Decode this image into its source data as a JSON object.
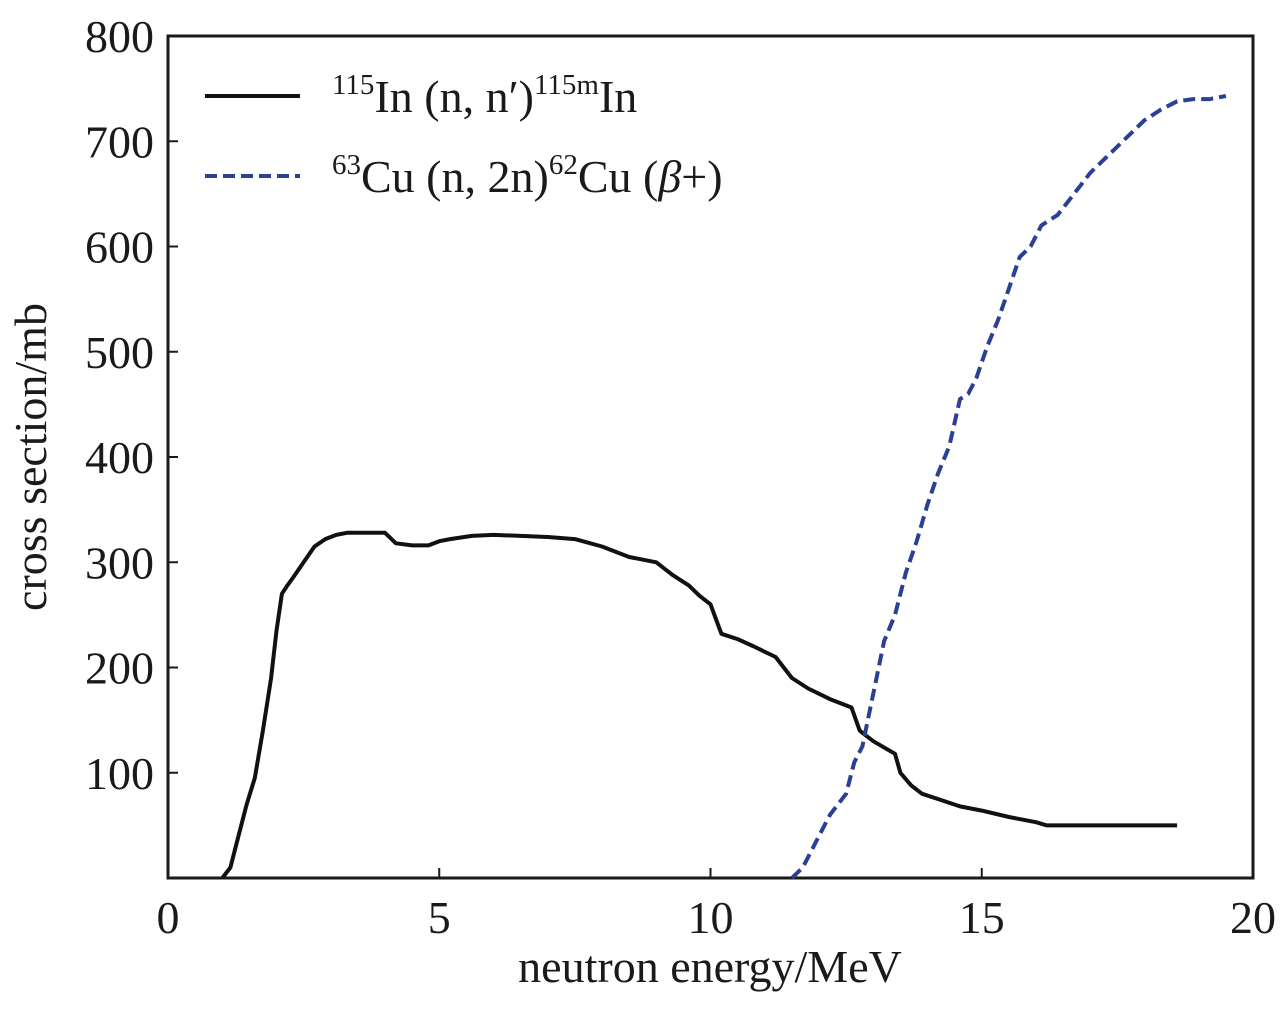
{
  "chart_data": {
    "type": "line",
    "title": "",
    "xlabel": "neutron energy/MeV",
    "ylabel": "cross section/mb",
    "xlim": [
      0,
      20
    ],
    "ylim": [
      0,
      800
    ],
    "x_ticks": [
      0,
      5,
      10,
      15,
      20
    ],
    "x_tick_labels": [
      "0",
      "5",
      "10",
      "15",
      "20"
    ],
    "y_ticks": [
      100,
      200,
      300,
      400,
      500,
      600,
      700,
      800
    ],
    "y_tick_labels": [
      "100",
      "200",
      "300",
      "400",
      "500",
      "600",
      "700",
      "800"
    ],
    "grid": false,
    "legend_position": "top-left",
    "series": [
      {
        "name": "115In (n, n′)115mIn",
        "legend": {
          "sup1": "115",
          "main": "In (n, n′)",
          "sup2": "115m",
          "tail": "In"
        },
        "style": "solid",
        "color": "#111111",
        "x": [
          1.0,
          1.15,
          1.3,
          1.45,
          1.6,
          1.75,
          1.9,
          2.0,
          2.1,
          2.2,
          2.3,
          2.5,
          2.7,
          2.9,
          3.1,
          3.3,
          3.5,
          3.7,
          4.0,
          4.2,
          4.5,
          4.8,
          5.0,
          5.2,
          5.6,
          6.0,
          6.5,
          7.0,
          7.5,
          8.0,
          8.5,
          9.0,
          9.3,
          9.6,
          9.8,
          10.0,
          10.2,
          10.5,
          10.8,
          11.2,
          11.5,
          11.8,
          12.2,
          12.6,
          12.75,
          12.8,
          13.0,
          13.4,
          13.5,
          13.7,
          13.9,
          14.2,
          14.6,
          15.0,
          15.5,
          16.0,
          16.2,
          16.5,
          17.0,
          17.5,
          18.0,
          18.6
        ],
        "y": [
          0,
          10,
          40,
          70,
          95,
          140,
          190,
          235,
          270,
          278,
          285,
          300,
          315,
          322,
          326,
          328,
          328,
          328,
          328,
          318,
          316,
          316,
          320,
          322,
          325,
          326,
          325,
          324,
          322,
          315,
          305,
          300,
          288,
          278,
          268,
          260,
          232,
          227,
          220,
          210,
          190,
          180,
          170,
          162,
          140,
          138,
          130,
          118,
          100,
          88,
          80,
          75,
          68,
          64,
          58,
          53,
          50,
          50,
          50,
          50,
          50,
          50
        ]
      },
      {
        "name": "63Cu (n, 2n)62Cu (β+)",
        "legend": {
          "sup1": "63",
          "main": "Cu (n, 2n)",
          "sup2": "62",
          "tail": "Cu (",
          "italic": "β",
          "end": "+)"
        },
        "style": "dashed",
        "color": "#2b3f94",
        "x": [
          11.5,
          11.7,
          11.8,
          12.0,
          12.2,
          12.5,
          12.65,
          12.8,
          12.9,
          13.1,
          13.2,
          13.4,
          13.6,
          13.8,
          14.0,
          14.2,
          14.4,
          14.6,
          14.75,
          14.9,
          15.1,
          15.3,
          15.5,
          15.7,
          15.9,
          16.1,
          16.4,
          16.7,
          17.0,
          17.2,
          17.5,
          17.8,
          18.0,
          18.3,
          18.6,
          18.9,
          19.2,
          19.5
        ],
        "y": [
          0,
          10,
          20,
          40,
          60,
          80,
          110,
          125,
          150,
          200,
          225,
          250,
          290,
          320,
          355,
          385,
          410,
          455,
          460,
          475,
          505,
          530,
          560,
          590,
          600,
          620,
          630,
          650,
          670,
          680,
          695,
          710,
          720,
          730,
          738,
          740,
          740,
          743
        ]
      }
    ]
  }
}
